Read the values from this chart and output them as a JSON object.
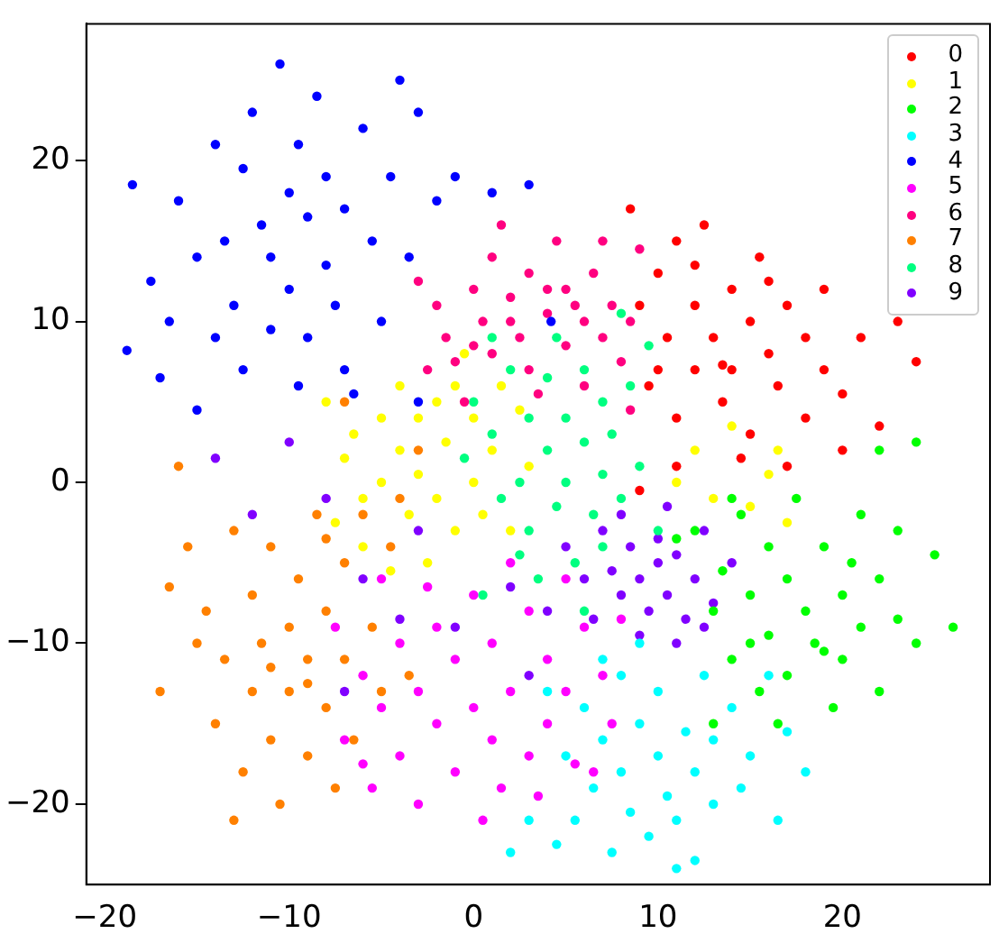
{
  "chart_data": {
    "type": "scatter",
    "xlim": [
      -21,
      28
    ],
    "ylim": [
      -25,
      28.5
    ],
    "xticks": [
      -20,
      -10,
      0,
      10,
      20
    ],
    "yticks": [
      -20,
      -10,
      0,
      10,
      20
    ],
    "grid": false,
    "legend": "top right",
    "marker": "circle",
    "series": [
      {
        "name": "0",
        "color": "#ff0000",
        "x": [
          8.5,
          9,
          9.5,
          10,
          10.5,
          11,
          11,
          12,
          12,
          12.5,
          13,
          13.5,
          14,
          14,
          15,
          15,
          15.5,
          16,
          16.5,
          17,
          17,
          18,
          18,
          19,
          19,
          20,
          21,
          22,
          23,
          24,
          11,
          13.5,
          16,
          10,
          14.5,
          12,
          20,
          9
        ],
        "values": [
          17,
          11,
          6,
          13,
          9,
          15,
          4,
          11,
          7,
          16,
          9,
          5,
          12,
          7,
          10,
          3,
          14,
          8,
          6,
          11,
          1,
          9,
          4,
          12,
          7,
          5.5,
          9,
          3.5,
          10,
          7.5,
          1,
          7.3,
          12.5,
          7,
          1.5,
          13.5,
          2,
          -0.5
        ]
      },
      {
        "name": "1",
        "color": "#ffff00",
        "x": [
          -8,
          -7,
          -6.5,
          -6,
          -5,
          -5,
          -4,
          -4,
          -3.5,
          -3,
          -3,
          -2,
          -2,
          -1.5,
          -1,
          -1,
          0,
          0,
          0.5,
          1,
          1.5,
          2,
          -6,
          -4.5,
          -2.5,
          3,
          12,
          13,
          14,
          15,
          16.5,
          17,
          11,
          16,
          -0.5,
          -7.5,
          2.5
        ],
        "values": [
          5,
          1.5,
          3,
          -1,
          4,
          0,
          6,
          2,
          -2,
          4,
          0.5,
          5,
          -1,
          2.5,
          6,
          -3,
          4,
          0,
          -2,
          2,
          6,
          -3,
          -4,
          -5.5,
          -5,
          1,
          2,
          -1,
          3.5,
          -1.5,
          2,
          -2.5,
          0,
          0.5,
          8,
          -2.5,
          4.5
        ]
      },
      {
        "name": "2",
        "color": "#00ff00",
        "x": [
          12,
          13,
          13.5,
          14,
          14.5,
          15,
          15.5,
          16,
          16,
          17,
          17,
          17.5,
          18,
          18.5,
          19,
          19.5,
          20,
          20,
          21,
          21,
          22,
          22,
          23,
          23,
          24,
          25,
          26,
          22,
          24,
          13,
          14,
          16.5,
          19,
          11,
          20.5,
          15
        ],
        "values": [
          -3,
          -8,
          -5.5,
          -11,
          -2,
          -7,
          -13,
          -4,
          -9.5,
          -6,
          -12,
          -1,
          -8,
          -10,
          -4,
          -14,
          -7,
          -11,
          -2,
          -9,
          -6,
          -13,
          -3,
          -8.5,
          -10,
          -4.5,
          -9,
          2,
          2.5,
          -15,
          -1,
          -15,
          -10.5,
          -3.5,
          -5,
          -10
        ]
      },
      {
        "name": "3",
        "color": "#00ffff",
        "x": [
          4,
          5,
          5.5,
          6,
          6.5,
          7,
          7.5,
          8,
          8,
          8.5,
          9,
          9.5,
          10,
          10,
          10.5,
          11,
          11.5,
          12,
          12,
          13,
          13,
          14,
          14.5,
          15,
          16,
          16.5,
          17,
          18,
          3,
          4.5,
          9,
          11,
          2,
          7,
          12.5
        ],
        "values": [
          -13,
          -17,
          -21,
          -14,
          -19,
          -16,
          -23,
          -12,
          -18,
          -20.5,
          -15,
          -22,
          -17,
          -13,
          -19.5,
          -21,
          -15.5,
          -18,
          -23.5,
          -16,
          -20,
          -14,
          -19,
          -17,
          -12,
          -21,
          -15.5,
          -18,
          -21,
          -22.5,
          -10,
          -24,
          -23,
          -11,
          -12
        ]
      },
      {
        "name": "4",
        "color": "#0000ff",
        "x": [
          -18.5,
          -18.8,
          -17,
          -16,
          -15,
          -14,
          -13,
          -12.5,
          -12,
          -11.5,
          -11,
          -10.5,
          -10,
          -10,
          -9.5,
          -9,
          -9,
          -8.5,
          -8,
          -8,
          -7.5,
          -7,
          -7,
          -6,
          -5.5,
          -5,
          -4.5,
          -4,
          -3.5,
          -3,
          -2,
          -1,
          -12.5,
          -14,
          -15,
          -11,
          -13.5,
          -9.5,
          -6.5,
          -3,
          1,
          3,
          4.2,
          -17.5,
          -16.5
        ],
        "values": [
          18.5,
          8.2,
          6.5,
          17.5,
          14,
          21,
          11,
          19.5,
          23,
          16,
          14,
          26,
          18,
          12,
          21,
          16.5,
          9,
          24,
          13.5,
          19,
          11,
          17,
          7,
          22,
          15,
          10,
          19,
          25,
          14,
          23,
          17.5,
          19,
          7,
          9,
          4.5,
          9.5,
          15,
          6,
          5.5,
          5,
          18,
          18.5,
          10,
          12.5,
          10
        ]
      },
      {
        "name": "5",
        "color": "#ff00ff",
        "x": [
          -7,
          -6,
          -5.5,
          -5,
          -4,
          -4,
          -3,
          -3,
          -2,
          -2,
          -1,
          -1,
          0,
          0,
          1,
          1,
          1.5,
          2,
          3,
          3,
          4,
          4,
          5,
          5,
          5.5,
          6,
          7,
          7.5,
          8,
          -5,
          -7.5,
          2,
          0.5,
          6.5,
          -2.5,
          -6,
          3.5
        ],
        "values": [
          -16,
          -12,
          -19,
          -14,
          -10,
          -17,
          -13,
          -20,
          -9,
          -15,
          -18,
          -11,
          -14,
          -7,
          -16,
          -10,
          -19,
          -13,
          -8,
          -17,
          -11,
          -15,
          -6,
          -13,
          -17.5,
          -9,
          -12,
          -15,
          -8.5,
          -6,
          -9,
          -5,
          -21,
          -18,
          -6.5,
          -17.5,
          -19.5
        ]
      },
      {
        "name": "6",
        "color": "#ff0080",
        "x": [
          -3,
          -2,
          -1.5,
          -1,
          0,
          0.5,
          1,
          1,
          2,
          2.5,
          3,
          3,
          4,
          4.5,
          5,
          5,
          6,
          6.5,
          7,
          7.5,
          8,
          8.5,
          9,
          6,
          3.5,
          -0.5,
          1.5,
          -2.5,
          4,
          2,
          5.5,
          7,
          0,
          8.5
        ],
        "values": [
          12.5,
          11,
          9,
          7.5,
          12,
          10,
          8,
          14,
          11.5,
          9,
          13,
          7,
          10.5,
          15,
          12,
          8.5,
          10,
          13,
          9,
          11,
          7.5,
          10,
          14.5,
          6,
          5.5,
          5,
          16,
          7,
          12,
          10,
          11,
          15,
          8.5,
          4.5
        ]
      },
      {
        "name": "7",
        "color": "#ff8000",
        "x": [
          -17,
          -16,
          -15.5,
          -14.5,
          -14,
          -13.5,
          -13,
          -12.5,
          -12,
          -12,
          -11.5,
          -11,
          -11,
          -10.5,
          -10,
          -10,
          -9.5,
          -9,
          -9,
          -8.5,
          -8,
          -8,
          -7.5,
          -7,
          -7,
          -6.5,
          -6,
          -5.5,
          -5,
          -4.5,
          -4,
          -15,
          -16.5,
          -13,
          -9,
          -11,
          -8,
          -3.5,
          -7,
          -3
        ],
        "values": [
          -13,
          1,
          -4,
          -8,
          -15,
          -11,
          -3,
          -18,
          -7,
          -13,
          -10,
          -16,
          -4,
          -20,
          -9,
          -13,
          -6,
          -17,
          -11,
          -2,
          -14,
          -8,
          -19,
          -5,
          -11,
          -16,
          -2,
          -9,
          -13,
          -4,
          -1,
          -10,
          -6.5,
          -21,
          -12.5,
          -11.5,
          -3.5,
          -12,
          5,
          2
        ]
      },
      {
        "name": "8",
        "color": "#00ff80",
        "x": [
          0,
          1,
          1.5,
          2,
          2.5,
          3,
          3,
          4,
          4,
          4.5,
          5,
          5,
          5.5,
          6,
          6,
          6.5,
          7,
          7,
          7.5,
          8,
          8.5,
          9,
          9.5,
          3.5,
          2.5,
          0.5,
          10,
          1,
          6,
          8,
          -0.5,
          4.5,
          7
        ],
        "values": [
          5,
          3,
          -1,
          7,
          0,
          4,
          -3,
          2,
          6.5,
          -1.5,
          4,
          0,
          -5,
          2.5,
          7,
          -2,
          5,
          0.5,
          3,
          -1,
          6,
          1,
          8.5,
          -6,
          -4.5,
          -7,
          -3,
          9,
          -8,
          10.5,
          1.5,
          9,
          -4
        ]
      },
      {
        "name": "9",
        "color": "#8000ff",
        "x": [
          5,
          6,
          6.5,
          7,
          7.5,
          8,
          8.5,
          9,
          9.5,
          10,
          10,
          10.5,
          11,
          11.5,
          12,
          12.5,
          13,
          8,
          9,
          11,
          4,
          14,
          -6,
          -8,
          -10,
          -14,
          -12,
          -4,
          -7,
          -3,
          -1,
          3,
          2,
          12.5,
          10.5
        ],
        "values": [
          -4,
          -6,
          -8.5,
          -3,
          -5.5,
          -7,
          -4,
          -6,
          -8,
          -3.5,
          -5,
          -7,
          -4.5,
          -8.5,
          -6,
          -3,
          -7.5,
          -2,
          -9.5,
          -10,
          -8,
          -5,
          -6,
          -1,
          2.5,
          1.5,
          -2,
          -8.5,
          -13,
          -3,
          -9,
          -12,
          -6.5,
          -9,
          -1.5
        ]
      }
    ]
  }
}
